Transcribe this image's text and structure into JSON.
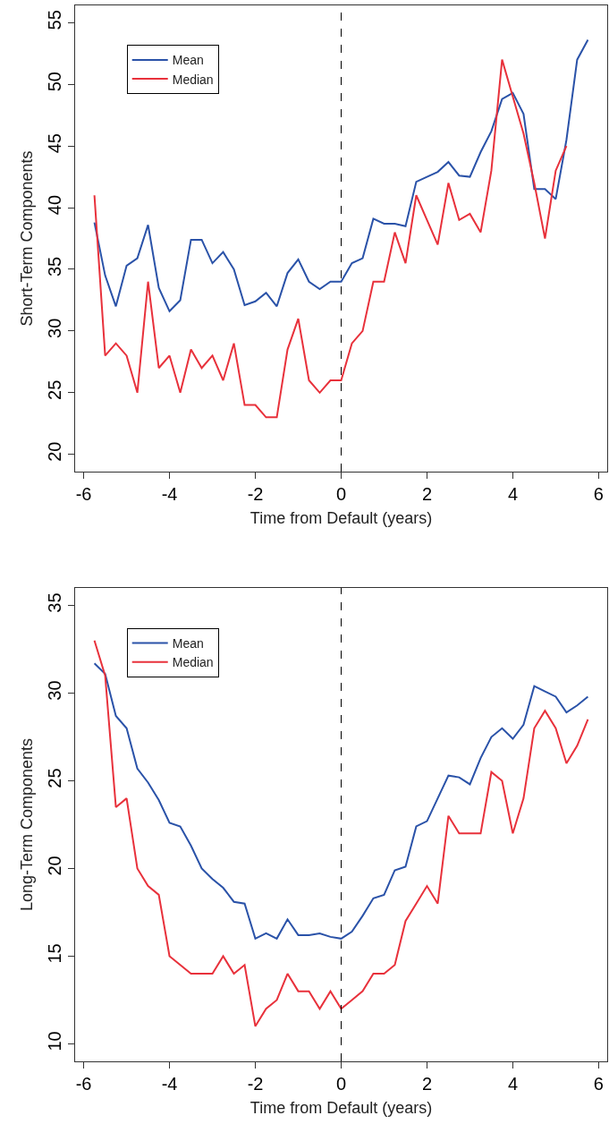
{
  "chart_data": [
    {
      "type": "line",
      "xlabel": "Time from Default (years)",
      "ylabel": "Short-Term Components",
      "x": [
        -5.75,
        -5.5,
        -5.25,
        -5,
        -4.75,
        -4.5,
        -4.25,
        -4,
        -3.75,
        -3.5,
        -3.25,
        -3,
        -2.75,
        -2.5,
        -2.25,
        -2,
        -1.75,
        -1.5,
        -1.25,
        -1,
        -0.75,
        -0.5,
        -0.25,
        0,
        0.25,
        0.5,
        0.75,
        1,
        1.25,
        1.5,
        1.75,
        2,
        2.25,
        2.5,
        2.75,
        3,
        3.25,
        3.5,
        3.75,
        4,
        4.25,
        4.5,
        4.75,
        5,
        5.25,
        5.5,
        5.75
      ],
      "series": [
        {
          "name": "Mean",
          "color": "#2a52a8",
          "values": [
            38.8,
            34.5,
            32,
            35.3,
            35.9,
            38.6,
            33.5,
            31.6,
            32.5,
            37.4,
            37.4,
            35.5,
            36.4,
            35,
            32.1,
            32.4,
            33.1,
            32,
            34.7,
            35.8,
            34,
            33.4,
            34,
            34,
            35.5,
            35.9,
            39.1,
            38.7,
            38.7,
            38.5,
            42.1,
            42.5,
            42.9,
            43.7,
            42.6,
            42.5,
            44.5,
            46.2,
            48.8,
            49.3,
            47.6,
            41.5,
            41.5,
            40.7,
            45.5,
            52,
            53.6
          ]
        },
        {
          "name": "Median",
          "color": "#e8313b",
          "values": [
            41,
            28,
            29,
            28,
            25,
            34,
            27,
            28,
            25,
            28.5,
            27,
            28,
            26,
            29,
            24,
            24,
            23,
            23,
            28.5,
            31,
            26,
            25,
            26,
            26,
            29,
            30,
            34,
            34,
            38,
            35.5,
            41,
            39,
            37,
            42,
            39,
            39.5,
            38,
            43,
            52,
            49,
            46,
            42,
            37.5,
            43,
            45,
            null,
            null
          ]
        }
      ],
      "xlim": [
        -6.2,
        6.2
      ],
      "xticks": [
        -6,
        -4,
        -2,
        0,
        2,
        4,
        6
      ],
      "ylim": [
        18.6,
        56.4
      ],
      "yticks": [
        20,
        25,
        30,
        35,
        40,
        45,
        50,
        55
      ],
      "ref_lines": [
        {
          "axis": "x",
          "value": 0,
          "color": "#000000",
          "line_style": "dashed"
        }
      ],
      "legend": "top left",
      "line_style": "solid",
      "marker": "none"
    },
    {
      "type": "line",
      "xlabel": "Time from Default (years)",
      "ylabel": "Long-Term Components",
      "x": [
        -5.75,
        -5.5,
        -5.25,
        -5,
        -4.75,
        -4.5,
        -4.25,
        -4,
        -3.75,
        -3.5,
        -3.25,
        -3,
        -2.75,
        -2.5,
        -2.25,
        -2,
        -1.75,
        -1.5,
        -1.25,
        -1,
        -0.75,
        -0.5,
        -0.25,
        0,
        0.25,
        0.5,
        0.75,
        1,
        1.25,
        1.5,
        1.75,
        2,
        2.25,
        2.5,
        2.75,
        3,
        3.25,
        3.5,
        3.75,
        4,
        4.25,
        4.5,
        4.75,
        5,
        5.25,
        5.5,
        5.75
      ],
      "series": [
        {
          "name": "Mean",
          "color": "#2a52a8",
          "values": [
            31.7,
            31.1,
            28.7,
            28,
            25.7,
            24.9,
            23.9,
            22.6,
            22.4,
            21.3,
            20,
            19.4,
            18.9,
            18.1,
            18,
            16,
            16.3,
            16,
            17.1,
            16.2,
            16.2,
            16.3,
            16.1,
            16,
            16.4,
            17.3,
            18.3,
            18.5,
            19.9,
            20.1,
            22.4,
            22.7,
            24,
            25.3,
            25.2,
            24.8,
            26.3,
            27.5,
            28,
            27.4,
            28.2,
            30.4,
            30.1,
            29.8,
            28.9,
            29.3,
            29.8
          ]
        },
        {
          "name": "Median",
          "color": "#e8313b",
          "values": [
            33,
            31,
            23.5,
            24,
            20,
            19,
            18.5,
            15,
            14.5,
            14,
            14,
            14,
            15,
            14,
            14.5,
            11,
            12,
            12.5,
            14,
            13,
            13,
            12,
            13,
            12,
            12.5,
            13,
            14,
            14,
            14.5,
            17,
            18,
            19,
            18,
            23,
            22,
            22,
            22,
            25.5,
            25,
            22,
            24,
            28,
            29,
            28,
            26,
            27,
            28.5
          ]
        }
      ],
      "xlim": [
        -6.2,
        6.2
      ],
      "xticks": [
        -6,
        -4,
        -2,
        0,
        2,
        4,
        6
      ],
      "ylim": [
        9,
        36
      ],
      "yticks": [
        10,
        15,
        20,
        25,
        30,
        35
      ],
      "ref_lines": [
        {
          "axis": "x",
          "value": 0,
          "color": "#000000",
          "line_style": "dashed"
        }
      ],
      "legend": "top left",
      "line_style": "solid",
      "marker": "none"
    }
  ]
}
